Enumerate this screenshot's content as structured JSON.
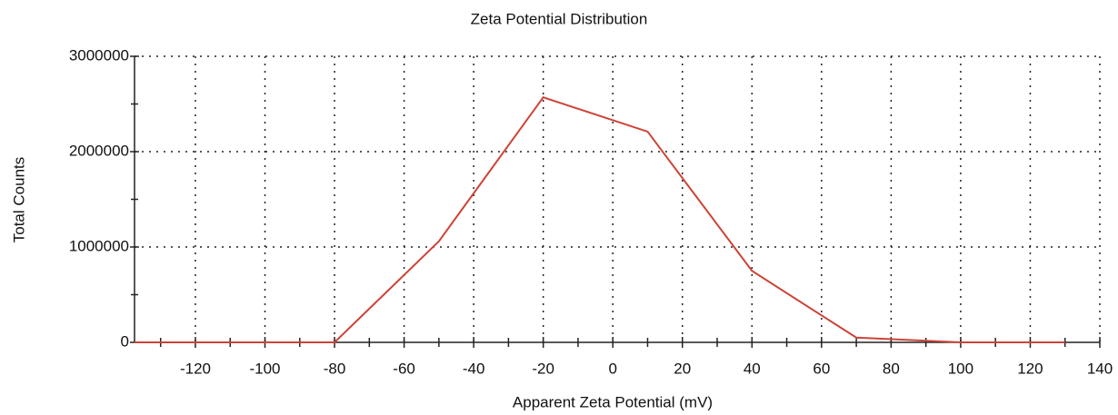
{
  "chart_data": {
    "type": "line",
    "title": "Zeta Potential Distribution",
    "x_label": "Apparent Zeta Potential (mV)",
    "y_label": "Total Counts",
    "series": [
      {
        "name": "Zeta Potential",
        "color": "#cc4438",
        "x": [
          -140,
          -110,
          -80,
          -50,
          -20,
          10,
          40,
          70,
          100,
          130
        ],
        "values": [
          0,
          0,
          0,
          1060000,
          2570000,
          2210000,
          750000,
          50000,
          0,
          0
        ]
      }
    ],
    "xlim": [
      -137.5,
      140
    ],
    "ylim": [
      0,
      3000000
    ],
    "xticks": [
      -120,
      -100,
      -80,
      -60,
      -40,
      -20,
      0,
      20,
      40,
      60,
      80,
      100,
      120,
      140
    ],
    "yticks": [
      0,
      1000000,
      2000000,
      3000000
    ],
    "xminorticks": [
      -130,
      -110,
      -90,
      -70,
      -50,
      -30,
      -10,
      10,
      30,
      50,
      70,
      90,
      110,
      130
    ],
    "yminorticks": [
      500000,
      1500000,
      2500000
    ],
    "grid": true
  }
}
